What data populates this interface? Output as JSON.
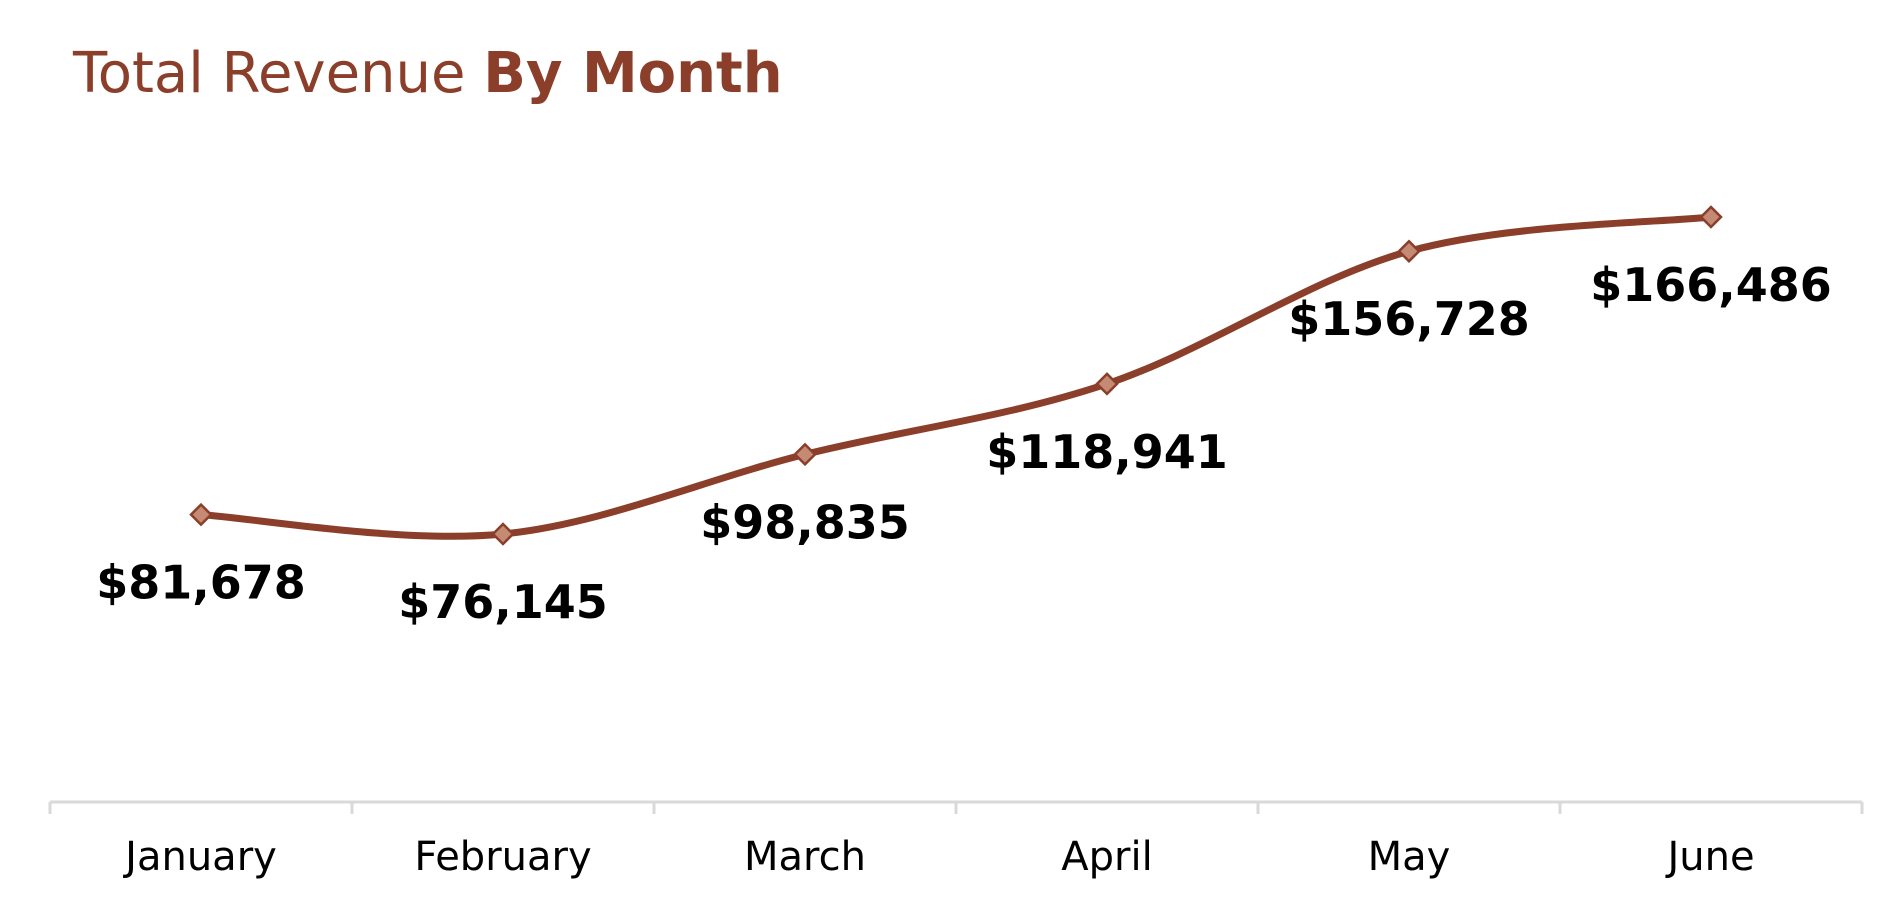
{
  "chart_data": {
    "type": "line",
    "title": "Total Revenue By Month",
    "title_parts": {
      "light": "Total Revenue ",
      "bold": "By Month"
    },
    "categories": [
      "January",
      "February",
      "March",
      "April",
      "May",
      "June"
    ],
    "series": [
      {
        "values": [
          81678,
          76145,
          98835,
          118941,
          156728,
          166486
        ],
        "labels": [
          "$81,678",
          "$76,145",
          "$98,835",
          "$118,941",
          "$156,728",
          "$166,486"
        ]
      }
    ],
    "xlabel": "",
    "ylabel": "",
    "ylim": [
      0,
      180000
    ],
    "smooth": true,
    "markers": "diamond",
    "grid": false,
    "legend": "none",
    "colors": {
      "line": "#8B3E2A",
      "marker_fill": "#C48A73",
      "title": "#8B3E2A",
      "axis": "#D9D9D9"
    }
  }
}
